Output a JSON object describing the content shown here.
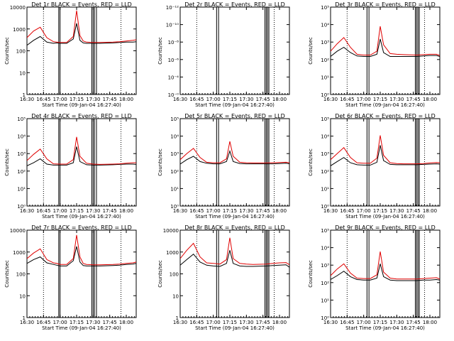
{
  "colors": {
    "events": "#000000",
    "lld": "#e00000",
    "axis": "#000000",
    "background": "#ffffff"
  },
  "shared": {
    "x_tick_labels": [
      "16:30",
      "16:45",
      "17:00",
      "17:15",
      "17:30",
      "17:45",
      "18:00"
    ],
    "x_label": "Start Time (09-Jan-04 16:27:40)",
    "y_label": "Counts/sec"
  },
  "chart_data": [
    {
      "type": "line",
      "title": "Det 1r BLACK = Events, RED = LLD",
      "y_scale": "log",
      "y_tick_labels": [
        "1",
        "10",
        "100",
        "1000",
        "10000"
      ],
      "ylim": [
        1,
        10000
      ],
      "xlim": [
        16.5,
        18.15
      ],
      "dotted_x": [
        16.75,
        17.92
      ],
      "solid_x": [
        16.98,
        17.0,
        17.48,
        17.5,
        17.52,
        17.55
      ],
      "series": [
        {
          "role": "events",
          "x": [
            16.5,
            16.6,
            16.7,
            16.8,
            16.9,
            16.95,
            17.0,
            17.1,
            17.2,
            17.25,
            17.3,
            17.35,
            17.4,
            17.5,
            17.6,
            17.8,
            17.9,
            18.0,
            18.1,
            18.15
          ],
          "values": [
            180,
            300,
            450,
            250,
            220,
            230,
            220,
            220,
            350,
            1800,
            300,
            230,
            220,
            220,
            220,
            230,
            240,
            250,
            250,
            260
          ]
        },
        {
          "role": "lld",
          "x": [
            16.5,
            16.6,
            16.7,
            16.8,
            16.9,
            16.95,
            17.0,
            17.1,
            17.2,
            17.25,
            17.3,
            17.35,
            17.4,
            17.5,
            17.6,
            17.8,
            17.9,
            18.0,
            18.1,
            18.15
          ],
          "values": [
            400,
            800,
            1200,
            400,
            260,
            250,
            240,
            240,
            450,
            7000,
            500,
            280,
            250,
            240,
            240,
            250,
            260,
            280,
            300,
            320
          ]
        }
      ]
    },
    {
      "type": "line",
      "title": "Det 2r BLACK = Events, RED = LLD",
      "y_scale": "log",
      "y_tick_labels": [
        "10⁻⁰",
        "10⁻⁴",
        "10⁻⁶",
        "10⁻⁸",
        "10⁻¹⁰",
        "10⁻¹²"
      ],
      "ylim": [
        1e-12,
        1
      ],
      "xlim": [
        16.5,
        18.15
      ],
      "dotted_x": [
        16.75,
        17.92
      ],
      "solid_x": [
        17.05,
        17.08,
        17.78,
        17.8,
        17.82,
        17.84
      ],
      "series": []
    },
    {
      "type": "line",
      "title": "Det 3r BLACK = Events, RED = LLD",
      "y_scale": "log",
      "y_tick_labels": [
        "10⁰",
        "10¹",
        "10²",
        "10³",
        "10⁴",
        "10⁵"
      ],
      "ylim": [
        1,
        100000
      ],
      "xlim": [
        16.5,
        18.15
      ],
      "dotted_x": [
        16.75,
        17.92
      ],
      "solid_x": [
        17.05,
        17.08,
        17.78,
        17.8,
        17.82,
        17.84
      ],
      "series": [
        {
          "role": "events",
          "x": [
            16.5,
            16.6,
            16.7,
            16.8,
            16.9,
            17.0,
            17.1,
            17.2,
            17.25,
            17.3,
            17.4,
            17.5,
            17.6,
            17.8,
            17.9,
            18.0,
            18.1,
            18.15
          ],
          "values": [
            150,
            300,
            500,
            250,
            160,
            150,
            150,
            200,
            1500,
            250,
            150,
            150,
            150,
            150,
            160,
            170,
            170,
            150
          ]
        },
        {
          "role": "lld",
          "x": [
            16.5,
            16.6,
            16.7,
            16.8,
            16.9,
            17.0,
            17.1,
            17.2,
            17.25,
            17.3,
            17.4,
            17.5,
            17.6,
            17.8,
            17.9,
            18.0,
            18.1,
            18.15
          ],
          "values": [
            300,
            800,
            1800,
            500,
            200,
            180,
            180,
            300,
            8000,
            700,
            220,
            200,
            190,
            180,
            190,
            200,
            200,
            170
          ]
        }
      ]
    },
    {
      "type": "line",
      "title": "Det 4r BLACK = Events, RED = LLD",
      "y_scale": "log",
      "y_tick_labels": [
        "10⁰",
        "10¹",
        "10²",
        "10³",
        "10⁴",
        "10⁵"
      ],
      "ylim": [
        1,
        100000
      ],
      "xlim": [
        16.5,
        18.15
      ],
      "dotted_x": [
        16.75,
        17.92
      ],
      "solid_x": [
        16.98,
        17.0,
        17.48,
        17.5,
        17.52,
        17.55
      ],
      "series": [
        {
          "role": "events",
          "x": [
            16.5,
            16.6,
            16.7,
            16.8,
            16.9,
            17.0,
            17.1,
            17.2,
            17.25,
            17.3,
            17.4,
            17.5,
            17.6,
            17.8,
            17.9,
            18.0,
            18.1,
            18.15
          ],
          "values": [
            200,
            300,
            500,
            250,
            220,
            220,
            220,
            300,
            2500,
            350,
            230,
            220,
            220,
            230,
            240,
            250,
            250,
            240
          ]
        },
        {
          "role": "lld",
          "x": [
            16.5,
            16.6,
            16.7,
            16.8,
            16.9,
            17.0,
            17.1,
            17.2,
            17.25,
            17.3,
            17.4,
            17.5,
            17.6,
            17.8,
            17.9,
            18.0,
            18.1,
            18.15
          ],
          "values": [
            400,
            900,
            1800,
            500,
            260,
            250,
            250,
            450,
            9000,
            700,
            280,
            250,
            240,
            250,
            260,
            280,
            300,
            300
          ]
        }
      ]
    },
    {
      "type": "line",
      "title": "Det 5r BLACK = Events, RED = LLD",
      "y_scale": "log",
      "y_tick_labels": [
        "10⁰",
        "10¹",
        "10²",
        "10³",
        "10⁴",
        "10⁵"
      ],
      "ylim": [
        1,
        100000
      ],
      "xlim": [
        16.5,
        18.15
      ],
      "dotted_x": [
        16.75,
        17.92
      ],
      "solid_x": [
        17.05,
        17.08,
        17.78,
        17.8,
        17.82,
        17.84
      ],
      "series": [
        {
          "role": "events",
          "x": [
            16.5,
            16.6,
            16.7,
            16.8,
            16.9,
            17.0,
            17.1,
            17.2,
            17.25,
            17.3,
            17.4,
            17.5,
            17.6,
            17.8,
            17.9,
            18.0,
            18.1,
            18.15
          ],
          "values": [
            250,
            450,
            700,
            350,
            280,
            260,
            260,
            350,
            1400,
            350,
            270,
            260,
            260,
            260,
            260,
            270,
            280,
            260
          ]
        },
        {
          "role": "lld",
          "x": [
            16.5,
            16.6,
            16.7,
            16.8,
            16.9,
            17.0,
            17.1,
            17.2,
            17.25,
            17.3,
            17.4,
            17.5,
            17.6,
            17.8,
            17.9,
            18.0,
            18.1,
            18.15
          ],
          "values": [
            450,
            1000,
            2000,
            600,
            320,
            300,
            300,
            500,
            5000,
            700,
            320,
            300,
            290,
            290,
            300,
            310,
            320,
            300
          ]
        }
      ]
    },
    {
      "type": "line",
      "title": "Det 6r BLACK = Events, RED = LLD",
      "y_scale": "log",
      "y_tick_labels": [
        "10⁰",
        "10¹",
        "10²",
        "10³",
        "10⁴",
        "10⁵"
      ],
      "ylim": [
        1,
        100000
      ],
      "xlim": [
        16.5,
        18.15
      ],
      "dotted_x": [
        16.75,
        17.92
      ],
      "solid_x": [
        17.05,
        17.08,
        17.78,
        17.8,
        17.82,
        17.84
      ],
      "series": [
        {
          "role": "events",
          "x": [
            16.5,
            16.6,
            16.7,
            16.8,
            16.9,
            17.0,
            17.1,
            17.2,
            17.25,
            17.3,
            17.4,
            17.5,
            17.6,
            17.8,
            17.9,
            18.0,
            18.1,
            18.15
          ],
          "values": [
            200,
            350,
            600,
            300,
            230,
            220,
            220,
            320,
            3000,
            400,
            240,
            230,
            230,
            230,
            240,
            250,
            260,
            250
          ]
        },
        {
          "role": "lld",
          "x": [
            16.5,
            16.6,
            16.7,
            16.8,
            16.9,
            17.0,
            17.1,
            17.2,
            17.25,
            17.3,
            17.4,
            17.5,
            17.6,
            17.8,
            17.9,
            18.0,
            18.1,
            18.15
          ],
          "values": [
            450,
            1000,
            2200,
            600,
            300,
            280,
            280,
            550,
            11000,
            800,
            300,
            270,
            260,
            260,
            270,
            290,
            310,
            300
          ]
        }
      ]
    },
    {
      "type": "line",
      "title": "Det 7r BLACK = Events, RED = LLD",
      "y_scale": "log",
      "y_tick_labels": [
        "1",
        "10",
        "100",
        "1000",
        "10000"
      ],
      "ylim": [
        1,
        10000
      ],
      "xlim": [
        16.5,
        18.15
      ],
      "dotted_x": [
        16.75,
        17.92
      ],
      "solid_x": [
        16.98,
        17.0,
        17.48,
        17.5,
        17.52,
        17.55
      ],
      "series": [
        {
          "role": "events",
          "x": [
            16.5,
            16.6,
            16.7,
            16.8,
            16.9,
            16.95,
            17.0,
            17.1,
            17.2,
            17.25,
            17.3,
            17.35,
            17.4,
            17.5,
            17.6,
            17.8,
            17.9,
            18.0,
            18.1,
            18.15
          ],
          "values": [
            300,
            450,
            600,
            320,
            270,
            250,
            230,
            230,
            400,
            1800,
            350,
            240,
            230,
            230,
            230,
            240,
            250,
            270,
            280,
            300
          ]
        },
        {
          "role": "lld",
          "x": [
            16.5,
            16.6,
            16.7,
            16.8,
            16.9,
            16.95,
            17.0,
            17.1,
            17.2,
            17.25,
            17.3,
            17.35,
            17.4,
            17.5,
            17.6,
            17.8,
            17.9,
            18.0,
            18.1,
            18.15
          ],
          "values": [
            500,
            900,
            1400,
            450,
            320,
            300,
            270,
            270,
            500,
            6000,
            600,
            300,
            270,
            260,
            260,
            270,
            280,
            300,
            320,
            350
          ]
        }
      ]
    },
    {
      "type": "line",
      "title": "Det 8r BLACK = Events, RED = LLD",
      "y_scale": "log",
      "y_tick_labels": [
        "1",
        "10",
        "100",
        "1000",
        "10000"
      ],
      "ylim": [
        1,
        10000
      ],
      "xlim": [
        16.5,
        18.15
      ],
      "dotted_x": [
        16.75,
        17.92
      ],
      "solid_x": [
        17.05,
        17.08,
        17.78,
        17.8,
        17.82,
        17.84
      ],
      "series": [
        {
          "role": "events",
          "x": [
            16.5,
            16.6,
            16.7,
            16.8,
            16.9,
            17.0,
            17.1,
            17.2,
            17.25,
            17.3,
            17.4,
            17.5,
            17.6,
            17.8,
            17.9,
            18.0,
            18.1,
            18.15
          ],
          "values": [
            250,
            450,
            800,
            350,
            250,
            230,
            220,
            300,
            1200,
            300,
            230,
            220,
            220,
            230,
            240,
            250,
            260,
            200
          ]
        },
        {
          "role": "lld",
          "x": [
            16.5,
            16.6,
            16.7,
            16.8,
            16.9,
            17.0,
            17.1,
            17.2,
            17.25,
            17.3,
            17.4,
            17.5,
            17.6,
            17.8,
            17.9,
            18.0,
            18.1,
            18.15
          ],
          "values": [
            500,
            1200,
            2500,
            600,
            320,
            300,
            280,
            450,
            4500,
            500,
            300,
            280,
            270,
            280,
            300,
            320,
            330,
            260
          ]
        }
      ]
    },
    {
      "type": "line",
      "title": "Det 9r BLACK = Events, RED = LLD",
      "y_scale": "log",
      "y_tick_labels": [
        "10⁰",
        "10¹",
        "10²",
        "10³",
        "10⁴",
        "10⁵"
      ],
      "ylim": [
        1,
        100000
      ],
      "xlim": [
        16.5,
        18.15
      ],
      "dotted_x": [
        16.75,
        17.92
      ],
      "solid_x": [
        17.05,
        17.08,
        17.78,
        17.8,
        17.82,
        17.84
      ],
      "series": [
        {
          "role": "events",
          "x": [
            16.5,
            16.6,
            16.7,
            16.8,
            16.9,
            17.0,
            17.1,
            17.2,
            17.25,
            17.3,
            17.4,
            17.5,
            17.6,
            17.8,
            17.9,
            18.0,
            18.1,
            18.15
          ],
          "values": [
            150,
            250,
            450,
            220,
            150,
            140,
            140,
            180,
            1200,
            220,
            140,
            130,
            130,
            130,
            140,
            140,
            150,
            140
          ]
        },
        {
          "role": "lld",
          "x": [
            16.5,
            16.6,
            16.7,
            16.8,
            16.9,
            17.0,
            17.1,
            17.2,
            17.25,
            17.3,
            17.4,
            17.5,
            17.6,
            17.8,
            17.9,
            18.0,
            18.1,
            18.15
          ],
          "values": [
            250,
            600,
            1200,
            350,
            180,
            170,
            170,
            280,
            6000,
            400,
            180,
            160,
            160,
            160,
            170,
            180,
            190,
            160
          ]
        }
      ]
    }
  ]
}
